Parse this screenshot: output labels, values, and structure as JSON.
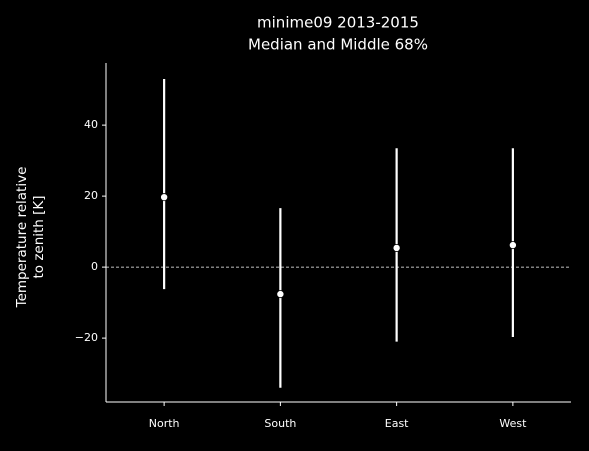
{
  "chart_data": {
    "type": "errorbar",
    "title": "minime09 2013-2015",
    "subtitle": "Median and Middle 68%",
    "ylabel": [
      "Temperature relative",
      "to zenith [K]"
    ],
    "categories": [
      "North",
      "South",
      "East",
      "West"
    ],
    "series": [
      {
        "color": "#ffffff",
        "values": [
          19.7,
          -7.6,
          5.4,
          6.2
        ],
        "lower": [
          -6.2,
          -34,
          -21,
          -19.7
        ],
        "upper": [
          53,
          16.6,
          33.5,
          33.5
        ]
      }
    ],
    "reference_line": 0,
    "ylim": [
      -38,
      57.5
    ],
    "yticks": [
      {
        "value": -20,
        "label": "−20"
      },
      0,
      20,
      40
    ]
  }
}
